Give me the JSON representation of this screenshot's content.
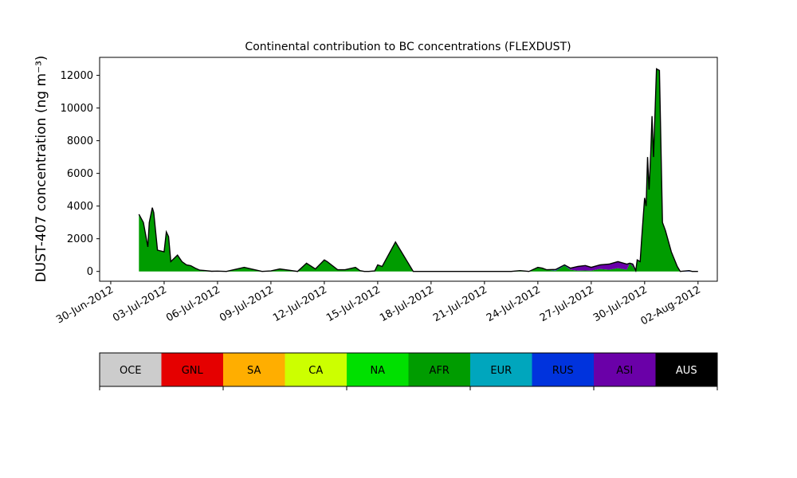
{
  "chart_data": {
    "type": "area",
    "title": "Continental contribution to BC concentrations (FLEXDUST)",
    "ylabel": "DUST-407 concentration (ng m⁻³)",
    "xlabel": "",
    "ylim": [
      -600,
      13100
    ],
    "yticks": [
      0,
      2000,
      4000,
      6000,
      8000,
      10000,
      12000
    ],
    "xticks": [
      "30-Jun-2012",
      "03-Jul-2012",
      "06-Jul-2012",
      "09-Jul-2012",
      "12-Jul-2012",
      "15-Jul-2012",
      "18-Jul-2012",
      "21-Jul-2012",
      "24-Jul-2012",
      "27-Jul-2012",
      "30-Jul-2012",
      "02-Aug-2012"
    ],
    "grid": false,
    "stacked": true,
    "x_dates": [
      "2012-07-01",
      "2012-07-01",
      "2012-07-02",
      "2012-07-02",
      "2012-07-02",
      "2012-07-02",
      "2012-07-02",
      "2012-07-03",
      "2012-07-03",
      "2012-07-03",
      "2012-07-03",
      "2012-07-03",
      "2012-07-04",
      "2012-07-04",
      "2012-07-04",
      "2012-07-04",
      "2012-07-05",
      "2012-07-05",
      "2012-07-05",
      "2012-07-06",
      "2012-07-06",
      "2012-07-07",
      "2012-07-08",
      "2012-07-09",
      "2012-07-09",
      "2012-07-10",
      "2012-07-11",
      "2012-07-11",
      "2012-07-12",
      "2012-07-12",
      "2012-07-12",
      "2012-07-13",
      "2012-07-13",
      "2012-07-14",
      "2012-07-14",
      "2012-07-14",
      "2012-07-14",
      "2012-07-15",
      "2012-07-15",
      "2012-07-16",
      "2012-07-17",
      "2012-07-18",
      "2012-07-19",
      "2012-07-20",
      "2012-07-21",
      "2012-07-21",
      "2012-07-21",
      "2012-07-22",
      "2012-07-22",
      "2012-07-23",
      "2012-07-23",
      "2012-07-24",
      "2012-07-24",
      "2012-07-24",
      "2012-07-25",
      "2012-07-25",
      "2012-07-25",
      "2012-07-26",
      "2012-07-26",
      "2012-07-27",
      "2012-07-27",
      "2012-07-28",
      "2012-07-28",
      "2012-07-29",
      "2012-07-29",
      "2012-07-29",
      "2012-07-29",
      "2012-07-29",
      "2012-07-29",
      "2012-07-29",
      "2012-07-30",
      "2012-07-30",
      "2012-07-30",
      "2012-07-30",
      "2012-07-30",
      "2012-07-30",
      "2012-07-30",
      "2012-07-30",
      "2012-07-30",
      "2012-07-31",
      "2012-07-31",
      "2012-07-31",
      "2012-07-31",
      "2012-08-01",
      "2012-08-01",
      "2012-08-01",
      "2012-08-02"
    ],
    "x": [
      "01-Jul 14:00",
      "01-Jul 20:00",
      "02-Jul 02:00",
      "02-Jul 04:00",
      "02-Jul 08:00",
      "02-Jul 10:00",
      "02-Jul 15:00",
      "03-Jul 00:00",
      "03-Jul 03:00",
      "03-Jul 06:00",
      "03-Jul 09:00",
      "03-Jul 18:00",
      "04-Jul 00:00",
      "04-Jul 06:00",
      "04-Jul 12:00",
      "04-Jul 18:00",
      "05-Jul 00:00",
      "05-Jul 08:00",
      "05-Jul 16:00",
      "06-Jul 00:00",
      "06-Jul 12:00",
      "07-Jul 12:00",
      "08-Jul 12:00",
      "09-Jul 00:00",
      "09-Jul 12:00",
      "10-Jul 12:00",
      "11-Jul 00:00",
      "11-Jul 12:00",
      "12-Jul 00:00",
      "12-Jul 04:00",
      "12-Jul 18:00",
      "13-Jul 04:00",
      "13-Jul 18:00",
      "14-Jul 00:00",
      "14-Jul 06:00",
      "14-Jul 12:00",
      "14-Jul 20:00",
      "15-Jul 00:00",
      "15-Jul 06:00",
      "16-Jul 00:00",
      "17-Jul 00:00",
      "18-Jul 00:00",
      "19-Jul 00:00",
      "20-Jul 00:00",
      "21-Jul 00:00",
      "21-Jul 06:00",
      "21-Jul 12:00",
      "22-Jul 00:00",
      "22-Jul 12:00",
      "23-Jul 00:00",
      "23-Jul 12:00",
      "24-Jul 00:00",
      "24-Jul 06:00",
      "24-Jul 12:00",
      "25-Jul 00:00",
      "25-Jul 12:00",
      "25-Jul 20:00",
      "26-Jul 06:00",
      "26-Jul 16:00",
      "27-Jul 00:00",
      "27-Jul 12:00",
      "28-Jul 00:00",
      "28-Jul 12:00",
      "29-Jul 00:00",
      "29-Jul 04:00",
      "29-Jul 08:00",
      "29-Jul 12:00",
      "29-Jul 14:00",
      "29-Jul 18:00",
      "29-Jul 20:00",
      "30-Jul 00:00",
      "30-Jul 02:00",
      "30-Jul 04:00",
      "30-Jul 06:00",
      "30-Jul 08:00",
      "30-Jul 10:00",
      "30-Jul 12:00",
      "30-Jul 16:00",
      "30-Jul 20:00",
      "31-Jul 00:00",
      "31-Jul 04:00",
      "31-Jul 12:00",
      "31-Jul 20:00",
      "01-Aug 00:00",
      "01-Aug 12:00",
      "01-Aug 16:00",
      "02-Aug 00:00"
    ],
    "series": [
      {
        "name": "OCE",
        "color": "#cccccc",
        "values": [
          0,
          0,
          0,
          0,
          0,
          0,
          0,
          0,
          0,
          0,
          0,
          0,
          0,
          0,
          0,
          0,
          0,
          0,
          0,
          0,
          0,
          0,
          0,
          0,
          0,
          0,
          0,
          0,
          0,
          0,
          0,
          0,
          0,
          0,
          0,
          0,
          0,
          0,
          0,
          0,
          0,
          0,
          0,
          0,
          0,
          0,
          0,
          0,
          0,
          0,
          0,
          0,
          0,
          0,
          0,
          0,
          0,
          0,
          0,
          0,
          0,
          0,
          0,
          0,
          0,
          0,
          0,
          0,
          0,
          0,
          0,
          0,
          0,
          0,
          0,
          0,
          0,
          0,
          0,
          0,
          0,
          0,
          0,
          0,
          0,
          0,
          0
        ]
      },
      {
        "name": "GNL",
        "color": "#e50000",
        "values": [
          0,
          0,
          0,
          0,
          0,
          0,
          0,
          0,
          0,
          0,
          0,
          0,
          0,
          0,
          0,
          0,
          0,
          0,
          0,
          0,
          0,
          0,
          0,
          0,
          0,
          0,
          0,
          0,
          0,
          0,
          0,
          0,
          0,
          0,
          0,
          0,
          0,
          0,
          0,
          0,
          0,
          0,
          0,
          0,
          0,
          0,
          0,
          0,
          0,
          0,
          0,
          0,
          0,
          0,
          0,
          0,
          0,
          0,
          0,
          0,
          0,
          0,
          0,
          0,
          0,
          0,
          0,
          0,
          0,
          0,
          0,
          0,
          0,
          0,
          0,
          0,
          0,
          0,
          0,
          0,
          0,
          0,
          0,
          0,
          0,
          0,
          0
        ]
      },
      {
        "name": "SA",
        "color": "#ffae00",
        "values": [
          0,
          0,
          0,
          0,
          0,
          0,
          0,
          0,
          0,
          0,
          0,
          0,
          0,
          0,
          0,
          0,
          0,
          0,
          0,
          0,
          0,
          0,
          0,
          0,
          0,
          0,
          0,
          0,
          0,
          0,
          0,
          0,
          0,
          0,
          0,
          0,
          0,
          0,
          0,
          0,
          0,
          0,
          0,
          0,
          0,
          0,
          0,
          0,
          0,
          0,
          0,
          0,
          0,
          0,
          0,
          0,
          0,
          0,
          0,
          0,
          0,
          0,
          0,
          0,
          0,
          0,
          0,
          0,
          0,
          0,
          0,
          0,
          0,
          0,
          0,
          0,
          0,
          0,
          0,
          0,
          0,
          0,
          0,
          0,
          0,
          0,
          0
        ]
      },
      {
        "name": "CA",
        "color": "#ccff00",
        "values": [
          0,
          0,
          0,
          0,
          0,
          0,
          0,
          0,
          0,
          0,
          0,
          0,
          0,
          0,
          0,
          0,
          0,
          0,
          0,
          0,
          0,
          0,
          0,
          0,
          0,
          0,
          0,
          0,
          0,
          0,
          0,
          0,
          0,
          0,
          0,
          0,
          0,
          0,
          0,
          0,
          0,
          0,
          0,
          0,
          0,
          0,
          0,
          0,
          0,
          0,
          0,
          0,
          0,
          0,
          0,
          0,
          0,
          0,
          0,
          0,
          0,
          0,
          0,
          0,
          0,
          0,
          0,
          0,
          0,
          0,
          0,
          0,
          0,
          0,
          0,
          0,
          0,
          0,
          0,
          0,
          0,
          0,
          0,
          0,
          0,
          0,
          0
        ]
      },
      {
        "name": "NA",
        "color": "#00e000",
        "values": [
          0,
          0,
          0,
          0,
          0,
          0,
          0,
          0,
          0,
          0,
          0,
          0,
          0,
          0,
          0,
          0,
          0,
          0,
          0,
          0,
          0,
          0,
          0,
          0,
          0,
          0,
          0,
          0,
          0,
          0,
          0,
          0,
          0,
          0,
          0,
          0,
          0,
          0,
          0,
          0,
          0,
          0,
          0,
          0,
          0,
          0,
          0,
          0,
          0,
          0,
          0,
          0,
          0,
          0,
          0,
          0,
          0,
          0,
          0,
          0,
          0,
          0,
          0,
          0,
          0,
          0,
          0,
          0,
          0,
          0,
          0,
          0,
          0,
          0,
          0,
          0,
          0,
          0,
          0,
          0,
          0,
          0,
          0,
          0,
          0,
          0,
          0
        ]
      },
      {
        "name": "AFR",
        "color": "#009c00",
        "values": [
          3500,
          3000,
          1500,
          3000,
          3900,
          3600,
          1300,
          1200,
          2400,
          2100,
          600,
          1000,
          600,
          400,
          350,
          200,
          60,
          20,
          0,
          0,
          0,
          250,
          0,
          30,
          150,
          0,
          500,
          150,
          700,
          600,
          100,
          100,
          250,
          50,
          0,
          0,
          30,
          400,
          300,
          1800,
          0,
          0,
          0,
          0,
          0,
          0,
          0,
          0,
          0,
          50,
          0,
          250,
          200,
          100,
          50,
          350,
          100,
          50,
          60,
          50,
          150,
          100,
          200,
          100,
          500,
          300,
          0,
          700,
          600,
          2000,
          4500,
          4000,
          7000,
          5000,
          7000,
          9500,
          7000,
          12400,
          12300,
          3000,
          2500,
          1200,
          300,
          0,
          0,
          0,
          0
        ]
      },
      {
        "name": "EUR",
        "color": "#00a6bd",
        "values": [
          0,
          0,
          0,
          0,
          0,
          0,
          0,
          0,
          0,
          0,
          0,
          0,
          0,
          0,
          0,
          0,
          0,
          0,
          0,
          0,
          0,
          0,
          0,
          0,
          0,
          0,
          0,
          0,
          0,
          0,
          0,
          0,
          0,
          0,
          0,
          0,
          0,
          0,
          0,
          0,
          0,
          0,
          0,
          0,
          0,
          0,
          0,
          0,
          0,
          0,
          0,
          0,
          0,
          0,
          0,
          0,
          0,
          0,
          0,
          0,
          0,
          0,
          0,
          0,
          0,
          0,
          0,
          0,
          0,
          0,
          0,
          0,
          0,
          0,
          0,
          0,
          0,
          0,
          0,
          0,
          0,
          0,
          0,
          0,
          0,
          0,
          0
        ]
      },
      {
        "name": "RUS",
        "color": "#0033dd",
        "values": [
          0,
          0,
          0,
          0,
          0,
          0,
          0,
          0,
          20,
          30,
          0,
          0,
          0,
          0,
          0,
          0,
          20,
          30,
          10,
          20,
          0,
          0,
          0,
          0,
          0,
          0,
          0,
          0,
          0,
          0,
          0,
          0,
          0,
          0,
          0,
          0,
          0,
          0,
          0,
          0,
          0,
          0,
          0,
          0,
          0,
          0,
          0,
          0,
          0,
          0,
          0,
          0,
          0,
          0,
          20,
          50,
          0,
          0,
          0,
          0,
          0,
          0,
          0,
          0,
          0,
          0,
          0,
          0,
          0,
          0,
          0,
          0,
          0,
          0,
          0,
          0,
          0,
          0,
          0,
          0,
          0,
          0,
          0,
          0,
          50,
          0,
          0
        ]
      },
      {
        "name": "ASI",
        "color": "#6a00a8",
        "values": [
          0,
          0,
          0,
          0,
          0,
          0,
          0,
          0,
          0,
          0,
          0,
          0,
          0,
          0,
          0,
          0,
          0,
          0,
          0,
          0,
          0,
          0,
          0,
          0,
          0,
          0,
          0,
          0,
          0,
          0,
          0,
          0,
          0,
          0,
          0,
          0,
          0,
          0,
          0,
          0,
          0,
          0,
          0,
          0,
          0,
          0,
          0,
          0,
          0,
          0,
          0,
          0,
          0,
          0,
          50,
          0,
          100,
          250,
          300,
          200,
          250,
          350,
          400,
          350,
          0,
          150,
          50,
          0,
          0,
          0,
          0,
          0,
          0,
          0,
          0,
          0,
          0,
          0,
          0,
          0,
          0,
          0,
          0,
          0,
          0,
          0,
          0
        ]
      },
      {
        "name": "AUS",
        "color": "#000000",
        "values": [
          0,
          0,
          0,
          0,
          0,
          0,
          0,
          0,
          0,
          0,
          0,
          0,
          0,
          0,
          0,
          0,
          0,
          0,
          0,
          0,
          0,
          0,
          0,
          0,
          0,
          0,
          0,
          0,
          0,
          0,
          0,
          0,
          0,
          0,
          0,
          0,
          0,
          0,
          0,
          0,
          0,
          0,
          0,
          0,
          0,
          0,
          0,
          0,
          0,
          0,
          0,
          0,
          0,
          0,
          0,
          0,
          0,
          0,
          0,
          0,
          0,
          0,
          0,
          0,
          0,
          0,
          0,
          0,
          0,
          0,
          0,
          0,
          0,
          0,
          0,
          0,
          0,
          0,
          0,
          0,
          0,
          0,
          0,
          0,
          0,
          0,
          0
        ]
      }
    ]
  }
}
